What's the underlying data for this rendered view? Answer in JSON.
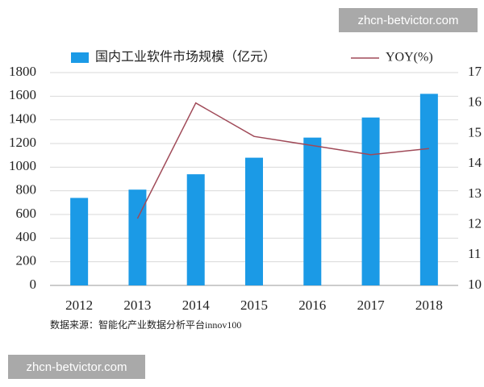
{
  "chart_data": {
    "type": "bar-line",
    "categories": [
      "2012",
      "2013",
      "2014",
      "2015",
      "2016",
      "2017",
      "2018"
    ],
    "series": [
      {
        "name": "国内工业软件市场规模（亿元）",
        "color": "#1b9ae6",
        "values": [
          740,
          810,
          940,
          1080,
          1250,
          1420,
          1620
        ]
      },
      {
        "name": "YOY(%)",
        "color": "#a04a58",
        "axis": "y2",
        "values": [
          null,
          12.2,
          16.0,
          14.9,
          14.6,
          14.3,
          14.5
        ]
      }
    ],
    "ylim": [
      0,
      1800
    ],
    "yticks": [
      0,
      200,
      400,
      600,
      800,
      1000,
      1200,
      1400,
      1600,
      1800
    ],
    "y2lim": [
      10,
      17
    ],
    "y2ticks": [
      10,
      11,
      12,
      13,
      14,
      15,
      16,
      17
    ],
    "grid": true,
    "legend": "top",
    "source": "数据来源：智能化产业数据分析平台innov100"
  },
  "watermarks": [
    "zhcn-betvictor.com",
    "zhcn-betvictor.com"
  ]
}
